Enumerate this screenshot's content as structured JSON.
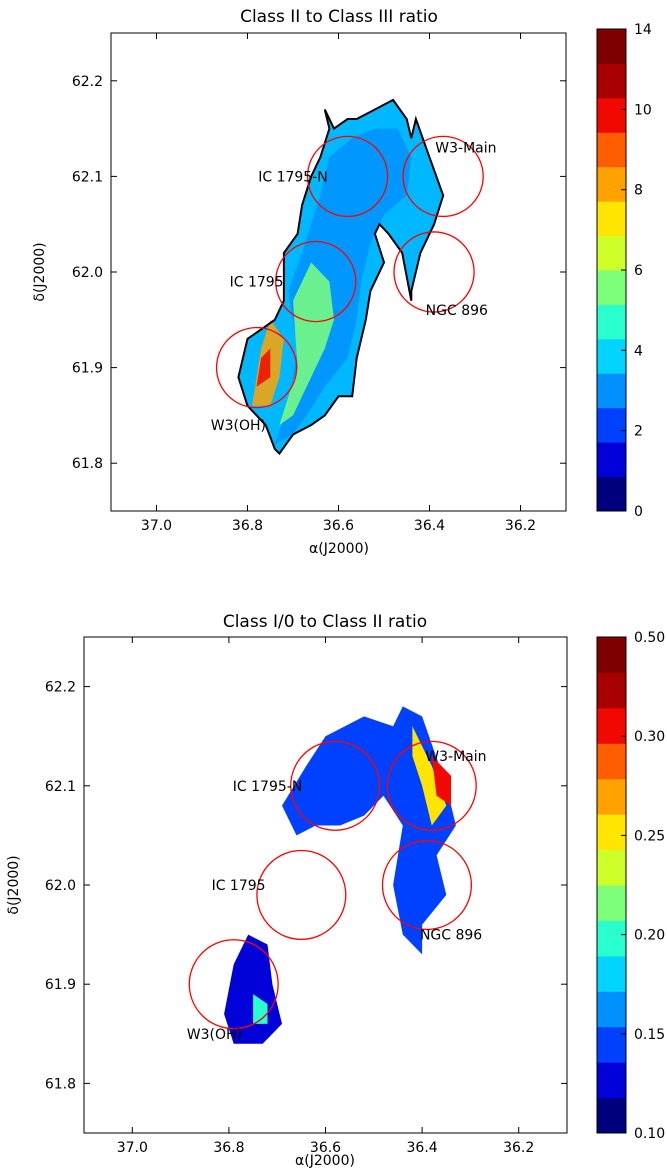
{
  "chart_data": [
    {
      "type": "heatmap",
      "title": "Class II to Class III ratio",
      "xlabel": "α(J2000)",
      "ylabel": "δ(J2000)",
      "xlim": [
        37.1,
        36.1
      ],
      "ylim": [
        61.75,
        62.25
      ],
      "xticks": [
        "37.0",
        "36.8",
        "36.6",
        "36.4",
        "36.2"
      ],
      "yticks": [
        "61.8",
        "61.9",
        "62.0",
        "62.1",
        "62.2"
      ],
      "colorbar": {
        "ticks": [
          "0",
          "2",
          "4",
          "6",
          "8",
          "10",
          "14"
        ],
        "colors": [
          "#00007f",
          "#0000d9",
          "#0040ff",
          "#0090ff",
          "#00d4ff",
          "#29ffce",
          "#7dff7a",
          "#ceff29",
          "#ffe500",
          "#ffa200",
          "#ff5d00",
          "#f10800",
          "#a80000",
          "#7f0000"
        ]
      },
      "regions": [
        {
          "name": "IC 1795-N",
          "ra": 36.58,
          "dec": 62.1,
          "label_ra": 36.7,
          "label_dec": 62.1
        },
        {
          "name": "W3-Main",
          "ra": 36.37,
          "dec": 62.1,
          "label_ra": 36.32,
          "label_dec": 62.13
        },
        {
          "name": "IC 1795",
          "ra": 36.65,
          "dec": 61.99,
          "label_ra": 36.78,
          "label_dec": 61.99
        },
        {
          "name": "NGC 896",
          "ra": 36.39,
          "dec": 62.0,
          "label_ra": 36.34,
          "label_dec": 61.96
        },
        {
          "name": "W3(OH)",
          "ra": 36.78,
          "dec": 61.9,
          "label_ra": 36.82,
          "label_dec": 61.84
        }
      ],
      "contours": [
        {
          "level": 4,
          "points": [
            [
              36.74,
              61.82
            ],
            [
              36.71,
              61.86
            ],
            [
              36.69,
              61.92
            ],
            [
              36.71,
              61.98
            ],
            [
              36.68,
              62.02
            ],
            [
              36.66,
              62.05
            ],
            [
              36.64,
              62.08
            ],
            [
              36.62,
              62.12
            ],
            [
              36.57,
              62.14
            ],
            [
              36.52,
              62.15
            ],
            [
              36.47,
              62.15
            ],
            [
              36.44,
              62.12
            ],
            [
              36.45,
              62.08
            ],
            [
              36.5,
              62.06
            ],
            [
              36.53,
              62.03
            ],
            [
              36.55,
              61.99
            ],
            [
              36.56,
              61.95
            ],
            [
              36.58,
              61.91
            ],
            [
              36.63,
              61.88
            ],
            [
              36.67,
              61.85
            ],
            [
              36.7,
              61.83
            ]
          ]
        },
        {
          "level": 6,
          "points": [
            [
              36.73,
              61.84
            ],
            [
              36.69,
              61.9
            ],
            [
              36.7,
              61.97
            ],
            [
              36.66,
              62.01
            ],
            [
              36.62,
              61.99
            ],
            [
              36.61,
              61.95
            ],
            [
              36.63,
              61.92
            ],
            [
              36.67,
              61.88
            ],
            [
              36.7,
              61.85
            ]
          ]
        },
        {
          "level": 8,
          "points": [
            [
              36.79,
              61.86
            ],
            [
              36.77,
              61.92
            ],
            [
              36.75,
              61.95
            ],
            [
              36.72,
              61.93
            ],
            [
              36.73,
              61.89
            ],
            [
              36.75,
              61.86
            ]
          ]
        },
        {
          "level": 10,
          "points": [
            [
              36.78,
              61.88
            ],
            [
              36.77,
              61.91
            ],
            [
              36.75,
              61.92
            ],
            [
              36.75,
              61.89
            ]
          ]
        }
      ],
      "boundary": [
        [
          36.74,
          61.815
        ],
        [
          36.76,
          61.84
        ],
        [
          36.8,
          61.86
        ],
        [
          36.82,
          61.89
        ],
        [
          36.8,
          61.93
        ],
        [
          36.77,
          61.94
        ],
        [
          36.74,
          61.95
        ],
        [
          36.72,
          61.97
        ],
        [
          36.72,
          62.02
        ],
        [
          36.69,
          62.04
        ],
        [
          36.68,
          62.07
        ],
        [
          36.66,
          62.1
        ],
        [
          36.64,
          62.12
        ],
        [
          36.62,
          62.15
        ],
        [
          36.63,
          62.17
        ],
        [
          36.61,
          62.15
        ],
        [
          36.58,
          62.16
        ],
        [
          36.56,
          62.16
        ],
        [
          36.52,
          62.17
        ],
        [
          36.48,
          62.18
        ],
        [
          36.45,
          62.16
        ],
        [
          36.44,
          62.14
        ],
        [
          36.43,
          62.16
        ],
        [
          36.4,
          62.12
        ],
        [
          36.37,
          62.08
        ],
        [
          36.39,
          62.05
        ],
        [
          36.42,
          62.02
        ],
        [
          36.44,
          61.98
        ],
        [
          36.44,
          61.97
        ],
        [
          36.46,
          62.02
        ],
        [
          36.49,
          62.04
        ],
        [
          36.51,
          62.05
        ],
        [
          36.52,
          62.04
        ],
        [
          36.5,
          62.01
        ],
        [
          36.53,
          61.98
        ],
        [
          36.54,
          61.95
        ],
        [
          36.56,
          61.91
        ],
        [
          36.57,
          61.87
        ],
        [
          36.6,
          61.87
        ],
        [
          36.63,
          61.85
        ],
        [
          36.66,
          61.84
        ],
        [
          36.7,
          61.83
        ],
        [
          36.73,
          61.81
        ]
      ]
    },
    {
      "type": "heatmap",
      "title": "Class I/0 to Class II ratio",
      "xlabel": "α(J2000)",
      "ylabel": "δ(J2000)",
      "xlim": [
        37.1,
        36.1
      ],
      "ylim": [
        61.75,
        62.25
      ],
      "xticks": [
        "37.0",
        "36.8",
        "36.6",
        "36.4",
        "36.2"
      ],
      "yticks": [
        "61.8",
        "61.9",
        "62.0",
        "62.1",
        "62.2"
      ],
      "colorbar": {
        "ticks": [
          "0.10",
          "0.15",
          "0.20",
          "0.25",
          "0.30",
          "0.50"
        ],
        "colors": [
          "#00007f",
          "#0000d9",
          "#0040ff",
          "#0090ff",
          "#00d4ff",
          "#29ffce",
          "#7dff7a",
          "#ceff29",
          "#ffe500",
          "#ffa200",
          "#ff5d00",
          "#f10800",
          "#a80000",
          "#7f0000"
        ]
      },
      "regions": [
        {
          "name": "IC 1795-N",
          "ra": 36.58,
          "dec": 62.1,
          "label_ra": 36.72,
          "label_dec": 62.1
        },
        {
          "name": "W3-Main",
          "ra": 36.38,
          "dec": 62.1,
          "label_ra": 36.33,
          "label_dec": 62.13
        },
        {
          "name": "IC 1795",
          "ra": 36.65,
          "dec": 61.99,
          "label_ra": 36.78,
          "label_dec": 62.0
        },
        {
          "name": "NGC 896",
          "ra": 36.39,
          "dec": 62.0,
          "label_ra": 36.34,
          "label_dec": 61.95
        },
        {
          "name": "W3(OH)",
          "ra": 36.79,
          "dec": 61.9,
          "label_ra": 36.83,
          "label_dec": 61.85
        }
      ]
    }
  ]
}
